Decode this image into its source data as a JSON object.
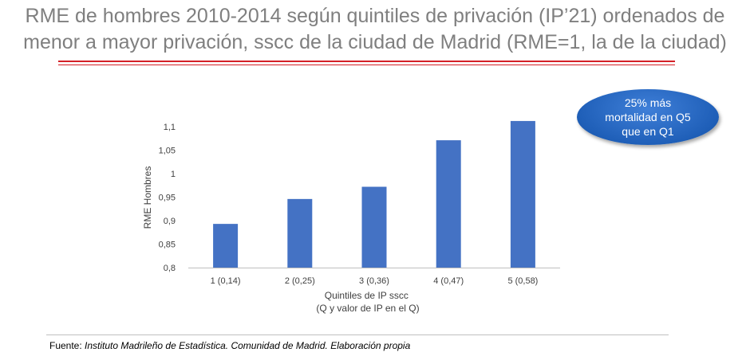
{
  "title": {
    "line1": "RME de hombres 2010-2014 según quintiles de privación (IP’21) ordenados de",
    "line2": "menor a mayor privación, sscc de la ciudad de Madrid (RME=1, la de la ciudad)"
  },
  "callout": {
    "text": "25% más mortalidad en Q5 que en Q1"
  },
  "footer": {
    "prefix": "Fuente: ",
    "source": "Instituto Madrileño de Estadística. Comunidad de Madrid. Elaboración propia"
  },
  "chart_data": {
    "type": "bar",
    "categories": [
      "1 (0,14)",
      "2 (0,25)",
      "3 (0,36)",
      "4 (0,47)",
      "5 (0,58)"
    ],
    "values": [
      0.893,
      0.946,
      0.972,
      1.071,
      1.112
    ],
    "ylabel": "RME Hombres",
    "xlabel": [
      "Quintiles de IP sscc",
      "(Q y valor de IP en el Q)"
    ],
    "ylim": [
      0.8,
      1.1
    ],
    "yticks": [
      "0,8",
      "0,85",
      "0,9",
      "0,95",
      "1",
      "1,05",
      "1,1"
    ],
    "grid": false,
    "bar_color": "#4472c4"
  }
}
